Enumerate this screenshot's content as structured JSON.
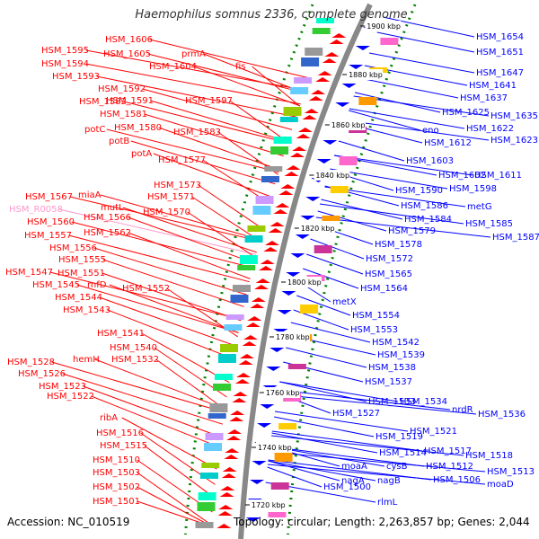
{
  "title": "Haemophilus somnus 2336, complete genome",
  "accession": "Accession: NC_010519",
  "summary": "Topology: circular; Length: 2,263,857 bp; Genes: 2,044",
  "colors": {
    "forward": "#ff0000",
    "reverse": "#0000ff",
    "rna": "#ff99cc",
    "ruler": "#008000",
    "backbone": "#888888"
  },
  "ticks": [
    "1900 kbp",
    "1880 kbp",
    "1860 kbp",
    "1840 kbp",
    "1820 kbp",
    "1800 kbp",
    "1780 kbp",
    "1760 kbp",
    "1740 kbp",
    "1720 kbp"
  ],
  "left_labels": [
    "HSM_1606",
    "HSM_1605",
    "prmA",
    "HSM_1604",
    "fis",
    "HSM_1595",
    "HSM_1594",
    "HSM_1593",
    "HSM_1592",
    "HSM_1591",
    "HSM_1582",
    "HSM_1597",
    "HSM_1581",
    "HSM_1580",
    "HSM_1583",
    "potC",
    "potB",
    "potA",
    "HSM_1577",
    "HSM_1573",
    "HSM_1571",
    "HSM_1567",
    "miaA",
    "mutL",
    "HSM_R0058",
    "HSM_1570",
    "HSM_1566",
    "HSM_1560",
    "HSM_1562",
    "HSM_1557",
    "HSM_1556",
    "HSM_1555",
    "HSM_1547",
    "HSM_1551",
    "HSM_1545",
    "rnfD",
    "HSM_1552",
    "HSM_1544",
    "HSM_1543",
    "HSM_1541",
    "HSM_1540",
    "hemH",
    "HSM_1532",
    "HSM_1528",
    "HSM_1526",
    "HSM_1523",
    "HSM_1522",
    "ribA",
    "HSM_1516",
    "HSM_1515",
    "HSM_1510",
    "HSM_1503",
    "HSM_1502",
    "HSM_1501"
  ],
  "right_labels": [
    "HSM_1654",
    "HSM_1651",
    "HSM_1647",
    "HSM_1641",
    "HSM_1637",
    "HSM_1625",
    "HSM_1635",
    "eno",
    "HSM_1622",
    "HSM_1612",
    "HSM_1623",
    "HSM_1603",
    "HSM_1602",
    "HSM_1611",
    "HSM_1590",
    "HSM_1598",
    "HSM_1586",
    "metG",
    "HSM_1584",
    "HSM_1579",
    "HSM_1585",
    "HSM_1578",
    "HSM_1587",
    "HSM_1572",
    "HSM_1565",
    "HSM_1564",
    "metX",
    "HSM_1554",
    "HSM_1553",
    "HSM_1542",
    "HSM_1539",
    "HSM_1538",
    "HSM_1537",
    "HSM_1533",
    "HSM_1534",
    "nrdR",
    "HSM_1536",
    "HSM_1527",
    "HSM_1521",
    "HSM_1519",
    "HSM_1517",
    "HSM_1518",
    "HSM_1514",
    "moaA",
    "cysB",
    "HSM_1512",
    "HSM_1513",
    "nagA",
    "nagB",
    "HSM_1506",
    "moaD",
    "HSM_1500",
    "rlmL"
  ]
}
